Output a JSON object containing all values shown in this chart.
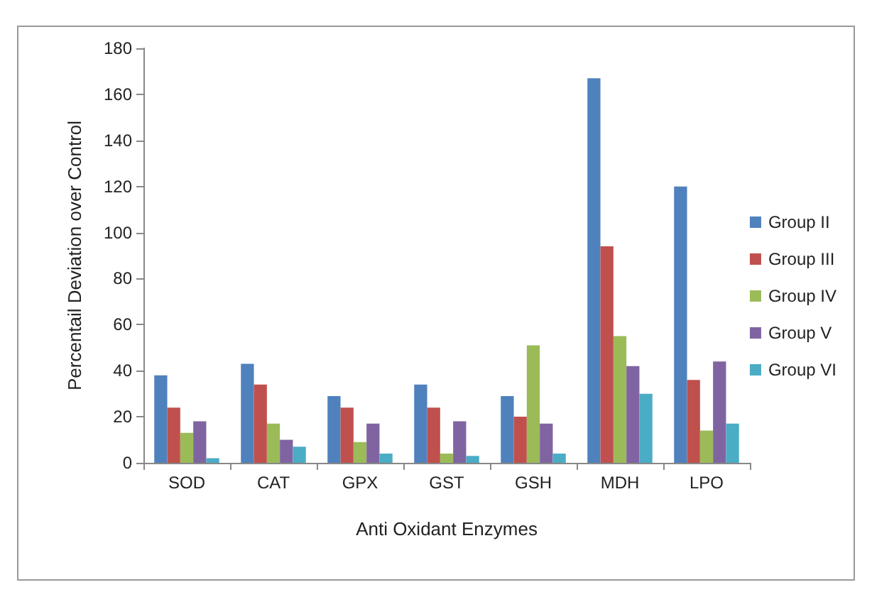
{
  "chart_data": {
    "type": "bar",
    "xlabel": "Anti Oxidant Enzymes",
    "ylabel": "Percentail Deviation over Control",
    "categories": [
      "SOD",
      "CAT",
      "GPX",
      "GST",
      "GSH",
      "MDH",
      "LPO"
    ],
    "series": [
      {
        "name": "Group II",
        "color": "#4f81bd",
        "values": [
          38,
          43,
          29,
          34,
          29,
          167,
          120
        ]
      },
      {
        "name": "Group III",
        "color": "#c0504d",
        "values": [
          24,
          34,
          24,
          24,
          20,
          94,
          36
        ]
      },
      {
        "name": "Group IV",
        "color": "#9bbb59",
        "values": [
          13,
          17,
          9,
          4,
          51,
          55,
          14
        ]
      },
      {
        "name": "Group V",
        "color": "#8064a2",
        "values": [
          18,
          10,
          17,
          18,
          17,
          42,
          44
        ]
      },
      {
        "name": "Group VI",
        "color": "#4bacc6",
        "values": [
          2,
          7,
          4,
          3,
          4,
          30,
          17
        ]
      }
    ],
    "ylim": [
      0,
      180
    ],
    "yticks": [
      0,
      20,
      40,
      60,
      80,
      100,
      120,
      140,
      160,
      180
    ],
    "grid": false,
    "legend": "right"
  }
}
